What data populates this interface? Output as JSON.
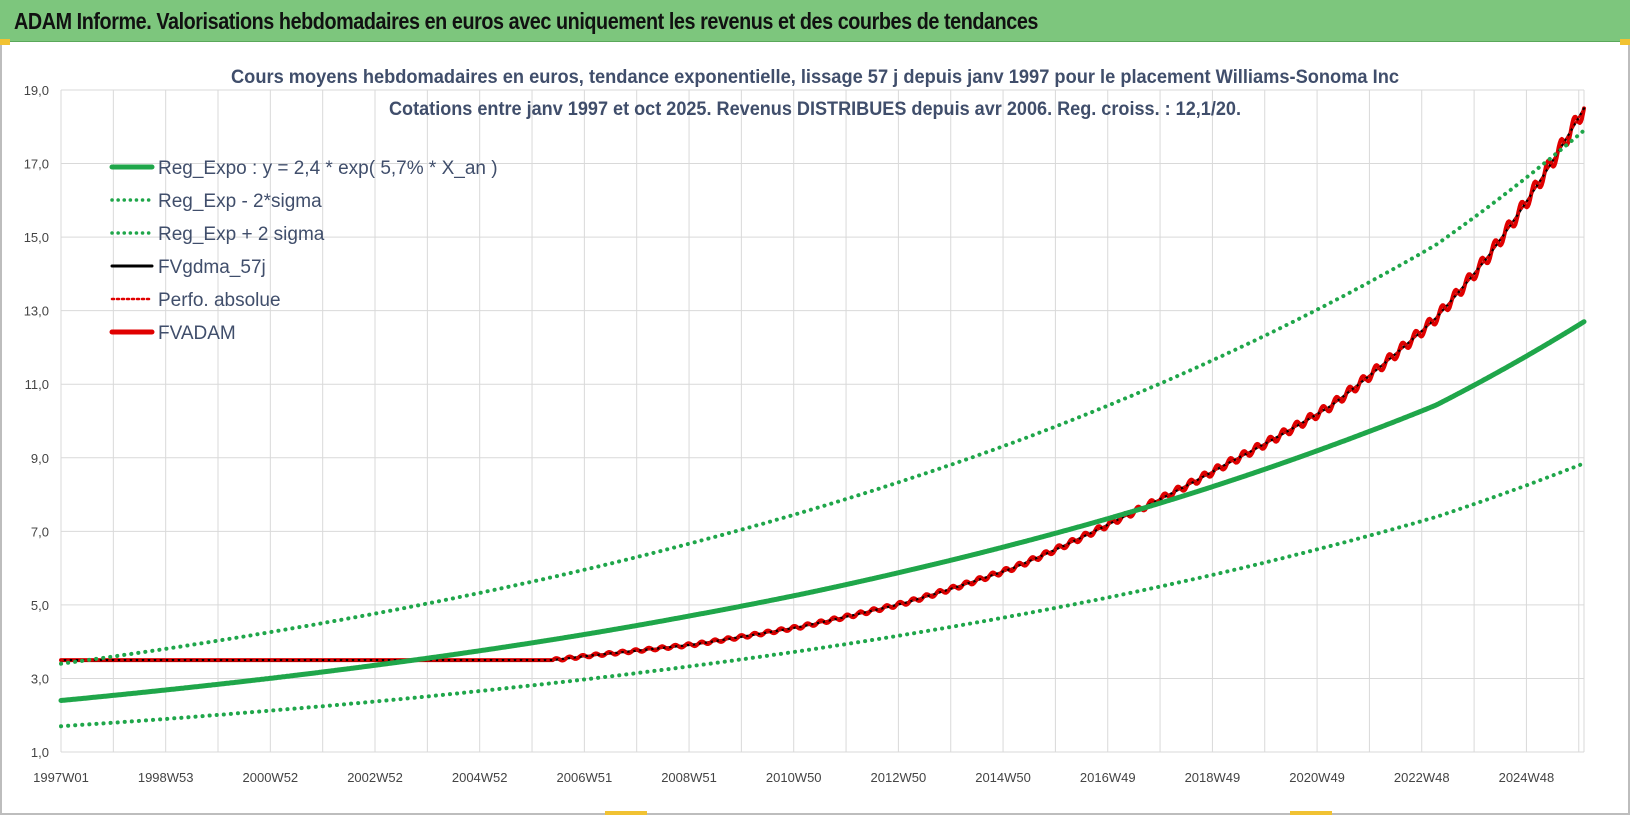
{
  "banner": {
    "title": "ADAM Informe. Valorisations hebdomadaires en euros avec uniquement les revenus et des courbes de tendances",
    "color": "#7dc67d"
  },
  "chart_data": {
    "type": "line",
    "title": "Cours moyens hebdomadaires en euros, tendance exponentielle, lissage 57 j depuis janv 1997 pour le placement Williams-Sonoma Inc",
    "subtitle": "Cotations entre janv 1997 et oct 2025. Revenus DISTRIBUES depuis avr 2006. Reg. croiss. : 12,1/20.",
    "xlabel": "",
    "ylabel": "",
    "x_tick_labels": [
      "1997W01",
      "1998W53",
      "2000W52",
      "2002W52",
      "2004W52",
      "2006W51",
      "2008W51",
      "2010W50",
      "2012W50",
      "2014W50",
      "2016W49",
      "2018W49",
      "2020W49",
      "2022W48",
      "2024W48"
    ],
    "x_range": [
      1997.0,
      2025.8
    ],
    "y_tick_labels": [
      "1,0",
      "3,0",
      "5,0",
      "7,0",
      "9,0",
      "11,0",
      "13,0",
      "15,0",
      "17,0",
      "19,0"
    ],
    "ylim": [
      1.0,
      19.0
    ],
    "grid": true,
    "legend_position": "top-left",
    "series": [
      {
        "name": "Reg_Expo : y = 2,4 * exp( 5,7% *  X_an )",
        "color": "#1fa64a",
        "style": "solid",
        "x": [
          1997.0,
          1999.0,
          2001.0,
          2003.0,
          2005.0,
          2007.0,
          2009.0,
          2011.0,
          2013.0,
          2015.0,
          2017.0,
          2019.0,
          2021.0,
          2023.0,
          2025.8
        ],
        "y": [
          2.4,
          2.69,
          3.01,
          3.37,
          3.77,
          4.22,
          4.73,
          5.29,
          5.93,
          6.64,
          7.43,
          8.32,
          9.32,
          10.43,
          12.7
        ]
      },
      {
        "name": "Reg_Exp - 2*sigma",
        "color": "#1fa64a",
        "style": "dotted",
        "x": [
          1997.0,
          1999.0,
          2001.0,
          2003.0,
          2005.0,
          2007.0,
          2009.0,
          2011.0,
          2013.0,
          2015.0,
          2017.0,
          2019.0,
          2021.0,
          2023.0,
          2025.8
        ],
        "y": [
          1.7,
          1.9,
          2.13,
          2.38,
          2.67,
          2.99,
          3.35,
          3.75,
          4.2,
          4.7,
          5.26,
          5.89,
          6.6,
          7.39,
          8.85
        ]
      },
      {
        "name": "Reg_Exp + 2 sigma",
        "color": "#1fa64a",
        "style": "dotted",
        "x": [
          1997.0,
          1999.0,
          2001.0,
          2003.0,
          2005.0,
          2007.0,
          2009.0,
          2011.0,
          2013.0,
          2015.0,
          2017.0,
          2019.0,
          2021.0,
          2023.0,
          2025.8
        ],
        "y": [
          3.4,
          3.81,
          4.27,
          4.78,
          5.35,
          5.99,
          6.71,
          7.51,
          8.41,
          9.41,
          10.54,
          11.8,
          13.21,
          14.79,
          17.9
        ]
      },
      {
        "name": "FVgdma_57j",
        "color": "#000000",
        "style": "solid",
        "x": [
          1997.0,
          2006.3,
          2007.0,
          2009.0,
          2011.0,
          2013.0,
          2015.0,
          2017.0,
          2019.0,
          2021.0,
          2023.0,
          2024.0,
          2025.0,
          2025.8
        ],
        "y": [
          3.5,
          3.5,
          3.62,
          3.93,
          4.41,
          5.07,
          6.0,
          7.33,
          8.8,
          10.4,
          12.8,
          14.5,
          16.6,
          18.5
        ]
      },
      {
        "name": "Perfo. absolue",
        "color": "#e00000",
        "style": "dotted",
        "x": [
          1997.0,
          2006.3,
          2007.0,
          2009.0,
          2011.0,
          2013.0,
          2015.0,
          2017.0,
          2019.0,
          2021.0,
          2023.0,
          2024.0,
          2025.0,
          2025.8
        ],
        "y": [
          3.5,
          3.5,
          3.62,
          3.93,
          4.41,
          5.07,
          6.0,
          7.33,
          8.8,
          10.4,
          12.8,
          14.5,
          16.6,
          18.5
        ]
      },
      {
        "name": "FVADAM",
        "color": "#e00000",
        "style": "solid",
        "x": [
          1997.0,
          2006.3,
          2007.0,
          2009.0,
          2011.0,
          2013.0,
          2015.0,
          2017.0,
          2019.0,
          2021.0,
          2023.0,
          2024.0,
          2025.0,
          2025.8
        ],
        "y": [
          3.5,
          3.5,
          3.62,
          3.93,
          4.41,
          5.07,
          6.0,
          7.33,
          8.8,
          10.4,
          12.8,
          14.5,
          16.6,
          18.5
        ]
      }
    ]
  }
}
